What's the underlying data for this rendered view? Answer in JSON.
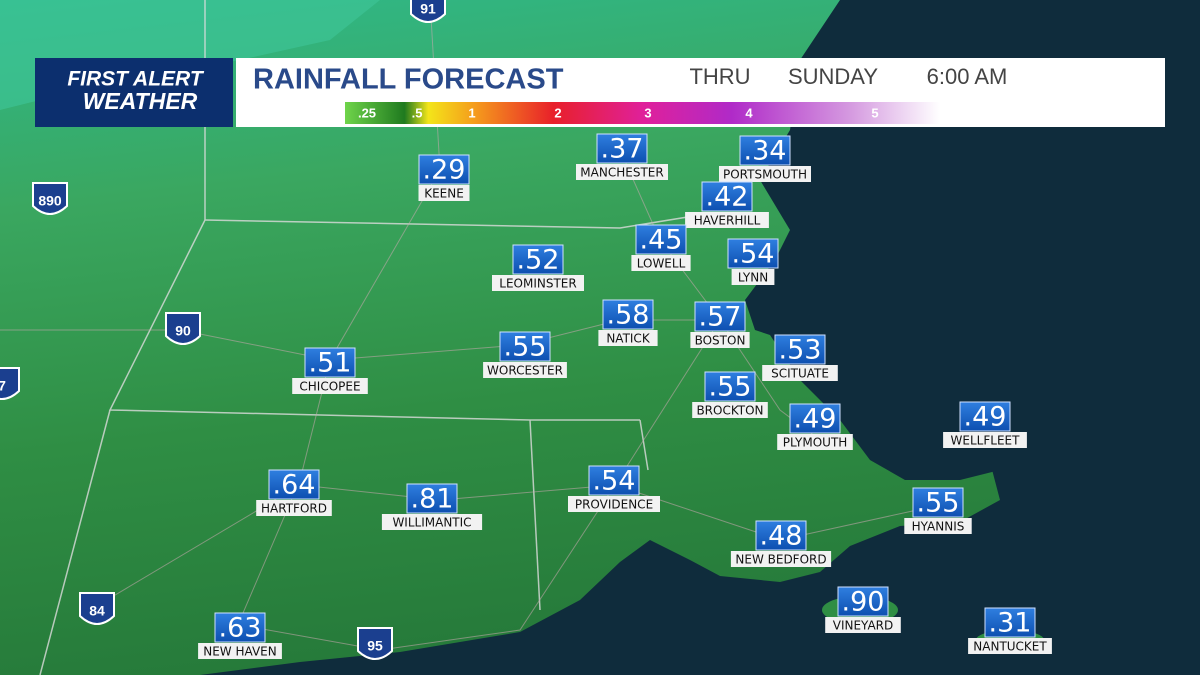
{
  "header": {
    "logo_top": "FIRST ALERT",
    "logo_bottom": "WEATHER",
    "title": "RAINFALL FORECAST",
    "thru": "THRU",
    "day": "SUNDAY",
    "time": "6:00 AM"
  },
  "legend": [
    ".25",
    ".5",
    "1",
    "2",
    "3",
    "4",
    "5"
  ],
  "highways": [
    "91",
    "890",
    "90",
    "84",
    "95",
    "7"
  ],
  "cities": [
    {
      "name": "KEENE",
      "amount": ".29"
    },
    {
      "name": "MANCHESTER",
      "amount": ".37"
    },
    {
      "name": "PORTSMOUTH",
      "amount": ".34"
    },
    {
      "name": "HAVERHILL",
      "amount": ".42"
    },
    {
      "name": "LOWELL",
      "amount": ".45"
    },
    {
      "name": "LYNN",
      "amount": ".54"
    },
    {
      "name": "LEOMINSTER",
      "amount": ".52"
    },
    {
      "name": "NATICK",
      "amount": ".58"
    },
    {
      "name": "BOSTON",
      "amount": ".57"
    },
    {
      "name": "WORCESTER",
      "amount": ".55"
    },
    {
      "name": "CHICOPEE",
      "amount": ".51"
    },
    {
      "name": "SCITUATE",
      "amount": ".53"
    },
    {
      "name": "BROCKTON",
      "amount": ".55"
    },
    {
      "name": "PLYMOUTH",
      "amount": ".49"
    },
    {
      "name": "WELLFLEET",
      "amount": ".49"
    },
    {
      "name": "HARTFORD",
      "amount": ".64"
    },
    {
      "name": "WILLIMANTIC",
      "amount": ".81"
    },
    {
      "name": "PROVIDENCE",
      "amount": ".54"
    },
    {
      "name": "HYANNIS",
      "amount": ".55"
    },
    {
      "name": "NEW BEDFORD",
      "amount": ".48"
    },
    {
      "name": "VINEYARD",
      "amount": ".90"
    },
    {
      "name": "NEW HAVEN",
      "amount": ".63"
    },
    {
      "name": "NANTUCKET",
      "amount": ".31"
    }
  ]
}
